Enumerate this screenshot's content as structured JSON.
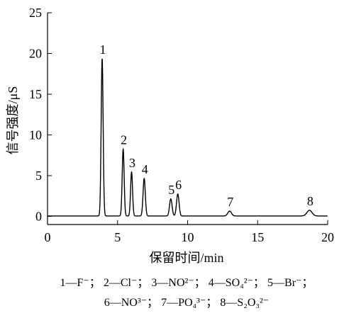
{
  "chart_data": {
    "type": "line",
    "xlabel": "保留时间/min",
    "ylabel": "信号强度/μS",
    "xlim": [
      0,
      20
    ],
    "ylim": [
      -1,
      25
    ],
    "xticks": [
      "0",
      "5",
      "10",
      "15",
      "20"
    ],
    "yticks": [
      "0",
      "5",
      "10",
      "15",
      "20",
      "25"
    ],
    "grid": false,
    "baseline": 0.05,
    "peaks": [
      {
        "label": "1",
        "x": 3.9,
        "y": 19.3,
        "width": 0.07
      },
      {
        "label": "2",
        "x": 5.4,
        "y": 8.2,
        "width": 0.07
      },
      {
        "label": "3",
        "x": 6.0,
        "y": 5.4,
        "width": 0.07
      },
      {
        "label": "4",
        "x": 6.9,
        "y": 4.6,
        "width": 0.08
      },
      {
        "label": "5",
        "x": 8.8,
        "y": 2.1,
        "width": 0.09
      },
      {
        "label": "6",
        "x": 9.3,
        "y": 2.7,
        "width": 0.09
      },
      {
        "label": "7",
        "x": 13.0,
        "y": 0.6,
        "width": 0.13
      },
      {
        "label": "8",
        "x": 18.7,
        "y": 0.7,
        "width": 0.18
      }
    ],
    "legend": [
      "1—F⁻； 2—Cl⁻； 3—NO²⁻； 4—SO₄²⁻； 5—Br⁻；",
      "6—NO³⁻； 7—PO₄³⁻； 8—S₂O₃²⁻"
    ],
    "colors": {
      "line": "#000000",
      "axis": "#000000"
    }
  }
}
